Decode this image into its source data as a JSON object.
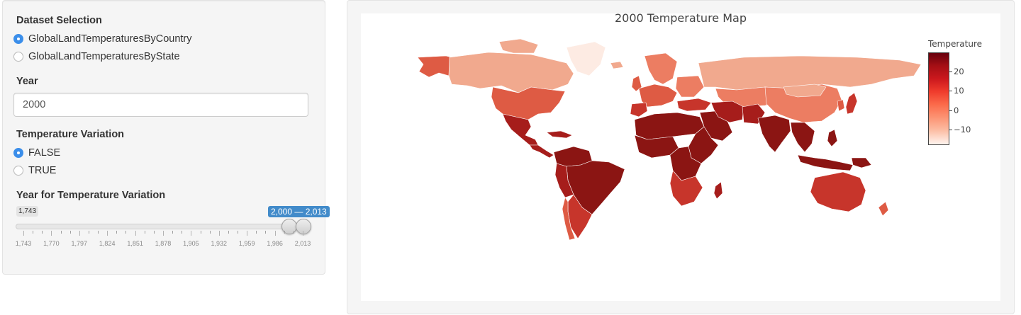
{
  "sidebar": {
    "dataset": {
      "label": "Dataset Selection",
      "options": [
        "GlobalLandTemperaturesByCountry",
        "GlobalLandTemperaturesByState"
      ],
      "selected": "GlobalLandTemperaturesByCountry"
    },
    "year": {
      "label": "Year",
      "value": "2000"
    },
    "variation": {
      "label": "Temperature Variation",
      "options": [
        "FALSE",
        "TRUE"
      ],
      "selected": "FALSE"
    },
    "slider": {
      "label": "Year for Temperature Variation",
      "min_label": "1,743",
      "selected_label": "2,000 — 2,013",
      "range": [
        2000,
        2013
      ],
      "bounds": [
        1743,
        2013
      ],
      "tick_labels": [
        "1,743",
        "1,770",
        "1,797",
        "1,824",
        "1,851",
        "1,878",
        "1,905",
        "1,932",
        "1,959",
        "1,986",
        "2,013"
      ]
    }
  },
  "map": {
    "title": "2000 Temperature Map",
    "colorbar": {
      "title": "Temperature",
      "ticks": [
        "20",
        "10",
        "0",
        "−10"
      ],
      "colorscale": [
        "#fff5f0",
        "#fcbba1",
        "#fc9272",
        "#fb6a4a",
        "#ef3b2c",
        "#cb181d",
        "#a50f15",
        "#67000d"
      ]
    },
    "colors": {
      "very_cold": "#fdebe3",
      "cold": "#f1a98e",
      "cool": "#ec7d62",
      "temperate": "#de5b44",
      "warm": "#c7352b",
      "hot": "#a61d1b",
      "very_hot": "#8b1513"
    }
  }
}
